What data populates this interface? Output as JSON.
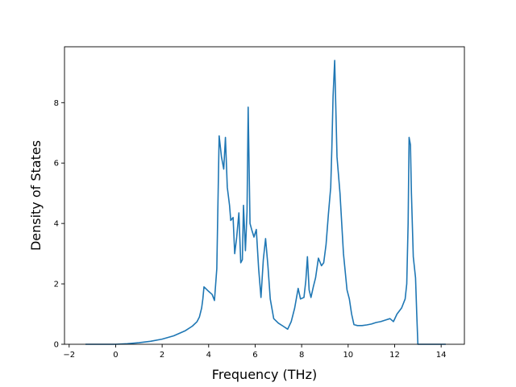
{
  "chart_data": {
    "type": "line",
    "title": "",
    "xlabel": "Frequency (THz)",
    "ylabel": "Density of States",
    "xlim": [
      -2.2,
      15.0
    ],
    "ylim": [
      0,
      9.85
    ],
    "xticks": [
      -2,
      0,
      2,
      4,
      6,
      8,
      10,
      12,
      14
    ],
    "yticks": [
      0,
      2,
      4,
      6,
      8
    ],
    "grid": false,
    "legend": "none",
    "colors": {
      "line": "#1f77b4",
      "axes": "#000000",
      "background": "#ffffff"
    },
    "series": [
      {
        "x": [
          -1.3,
          -1.0,
          -0.5,
          0.0,
          0.5,
          1.0,
          1.5,
          2.0,
          2.5,
          3.0,
          3.3,
          3.5,
          3.6,
          3.7,
          3.75,
          3.8,
          4.0,
          4.15,
          4.25,
          4.35,
          4.45,
          4.55,
          4.65,
          4.72,
          4.8,
          4.9,
          4.95,
          5.05,
          5.12,
          5.2,
          5.3,
          5.38,
          5.45,
          5.5,
          5.58,
          5.65,
          5.7,
          5.78,
          5.85,
          5.95,
          6.05,
          6.15,
          6.25,
          6.35,
          6.45,
          6.55,
          6.65,
          6.8,
          7.0,
          7.2,
          7.4,
          7.55,
          7.7,
          7.85,
          7.95,
          8.1,
          8.18,
          8.25,
          8.32,
          8.4,
          8.5,
          8.6,
          8.72,
          8.85,
          8.95,
          9.05,
          9.15,
          9.25,
          9.3,
          9.35,
          9.42,
          9.52,
          9.65,
          9.8,
          9.95,
          10.05,
          10.15,
          10.25,
          10.4,
          10.6,
          10.8,
          11.0,
          11.2,
          11.4,
          11.6,
          11.8,
          11.95,
          12.1,
          12.3,
          12.45,
          12.52,
          12.58,
          12.62,
          12.68,
          12.72,
          12.8,
          12.9,
          12.95,
          13.0,
          13.5,
          14.0,
          14.2
        ],
        "y": [
          0.0,
          0.0,
          0.0,
          0.0,
          0.02,
          0.05,
          0.1,
          0.17,
          0.28,
          0.45,
          0.6,
          0.75,
          0.9,
          1.2,
          1.5,
          1.9,
          1.75,
          1.65,
          1.45,
          2.5,
          6.9,
          6.2,
          5.8,
          6.85,
          5.2,
          4.6,
          4.1,
          4.2,
          3.0,
          3.5,
          4.35,
          2.7,
          2.8,
          4.6,
          3.1,
          4.4,
          7.85,
          4.0,
          3.8,
          3.55,
          3.8,
          2.5,
          1.55,
          2.8,
          3.5,
          2.6,
          1.5,
          0.85,
          0.7,
          0.6,
          0.5,
          0.75,
          1.2,
          1.85,
          1.5,
          1.55,
          2.1,
          2.9,
          1.8,
          1.55,
          1.9,
          2.2,
          2.85,
          2.6,
          2.7,
          3.3,
          4.3,
          5.2,
          6.5,
          8.2,
          9.4,
          6.2,
          5.0,
          3.0,
          1.8,
          1.5,
          1.0,
          0.65,
          0.62,
          0.62,
          0.64,
          0.67,
          0.72,
          0.75,
          0.8,
          0.85,
          0.75,
          1.0,
          1.2,
          1.5,
          2.0,
          4.0,
          6.85,
          6.6,
          5.0,
          2.9,
          2.2,
          1.0,
          0.0,
          0.0,
          0.0,
          0.0
        ]
      }
    ]
  }
}
